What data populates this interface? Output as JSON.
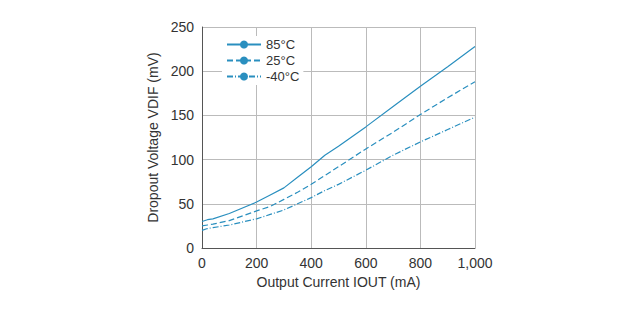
{
  "chart_data": {
    "type": "line",
    "x_label": "Output Current IOUT (mA)",
    "y_label": "Dropout Voltage VDIF (mV)",
    "x": [
      0,
      20,
      40,
      100,
      200,
      250,
      300,
      350,
      400,
      450,
      500,
      600,
      700,
      800,
      900,
      1000
    ],
    "series": [
      {
        "name": "85°C",
        "color": "#2a8fbf",
        "line_style": "solid",
        "values": [
          30,
          32,
          33,
          39,
          52,
          60,
          68,
          80,
          92,
          105,
          115,
          137,
          160,
          183,
          205,
          228
        ]
      },
      {
        "name": "25°C",
        "color": "#2a8fbf",
        "line_style": "dashed",
        "values": [
          25,
          26,
          27,
          31,
          42,
          47,
          55,
          63,
          72,
          82,
          92,
          112,
          131,
          151,
          170,
          188
        ]
      },
      {
        "name": "-40°C",
        "color": "#2a8fbf",
        "line_style": "dashdot",
        "values": [
          20,
          22,
          23,
          26,
          33,
          38,
          43,
          50,
          57,
          65,
          72,
          88,
          105,
          120,
          134,
          148
        ]
      }
    ],
    "xlim": [
      0,
      1000
    ],
    "xticks": [
      0,
      200,
      400,
      600,
      800,
      1000
    ],
    "ylim": [
      0,
      250
    ],
    "yticks": [
      0,
      50,
      100,
      150,
      200,
      250
    ],
    "grid": true,
    "legend": "upper left"
  }
}
